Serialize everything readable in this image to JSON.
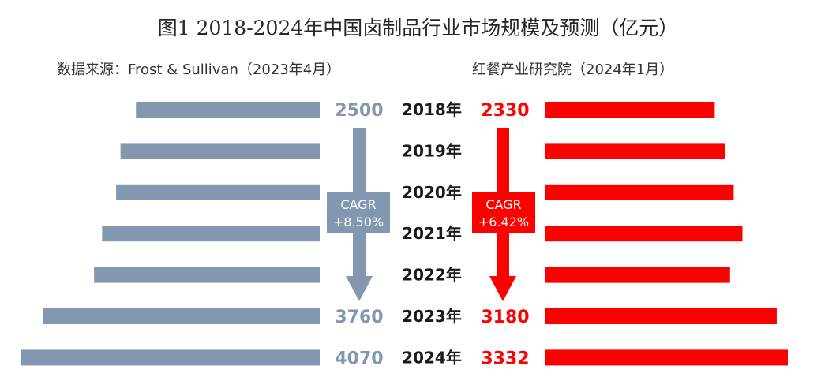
{
  "chart_data": {
    "type": "bar",
    "title": "图1  2018-2024年中国卤制品行业市场规模及预测（亿元）",
    "categories": [
      "2018年",
      "2019年",
      "2020年",
      "2021年",
      "2022年",
      "2023年",
      "2024年"
    ],
    "colors": {
      "left": "#8497b0",
      "right": "#ff0000",
      "year": "#1a1a1a"
    },
    "series": [
      {
        "name": "数据来源：Frost & Sullivan（2023年4月）",
        "side": "left",
        "values": [
          2500,
          2710,
          2770,
          2960,
          3070,
          3760,
          4070
        ],
        "labels": [
          "2500",
          "",
          "",
          "",
          "",
          "3760",
          "4070"
        ],
        "cagr": {
          "label": "CAGR",
          "value": "+8.50%"
        }
      },
      {
        "name": "红餐产业研究院（2024年1月）",
        "side": "right",
        "values": [
          2330,
          2470,
          2590,
          2710,
          2540,
          3180,
          3332
        ],
        "labels": [
          "2330",
          "",
          "",
          "",
          "",
          "3180",
          "3332"
        ],
        "cagr": {
          "label": "CAGR",
          "value": "+6.42%"
        }
      }
    ]
  }
}
